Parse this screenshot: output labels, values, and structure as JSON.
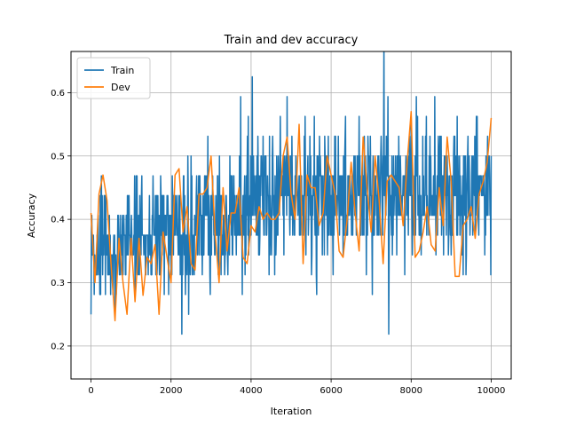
{
  "chart_data": {
    "type": "line",
    "title": "Train and dev accuracy",
    "xlabel": "Iteration",
    "ylabel": "Accuracy",
    "xlim": [
      -500,
      10500
    ],
    "ylim": [
      0.148,
      0.665
    ],
    "xticks": [
      0,
      2000,
      4000,
      6000,
      8000,
      10000
    ],
    "yticks": [
      0.2,
      0.3,
      0.4,
      0.5,
      0.6
    ],
    "grid": true,
    "legend": "top-left",
    "series": [
      {
        "name": "Train",
        "color": "#1f77b4",
        "noisy": true,
        "seed": 7,
        "x_start": 0,
        "x_step": 10,
        "count": 1001,
        "mean_knots": [
          [
            0,
            0.36
          ],
          [
            1000,
            0.37
          ],
          [
            2000,
            0.38
          ],
          [
            3000,
            0.4
          ],
          [
            4000,
            0.42
          ],
          [
            5000,
            0.44
          ],
          [
            6000,
            0.44
          ],
          [
            7000,
            0.44
          ],
          [
            8000,
            0.44
          ],
          [
            9000,
            0.44
          ],
          [
            10000,
            0.45
          ]
        ],
        "spread_knots": [
          [
            0,
            0.065
          ],
          [
            2000,
            0.075
          ],
          [
            4000,
            0.085
          ],
          [
            6000,
            0.085
          ],
          [
            8000,
            0.085
          ],
          [
            10000,
            0.085
          ]
        ]
      },
      {
        "name": "Dev",
        "color": "#ff7f0e",
        "x_start": 0,
        "x_step": 100,
        "values": [
          0.41,
          0.3,
          0.44,
          0.47,
          0.43,
          0.33,
          0.24,
          0.37,
          0.3,
          0.25,
          0.37,
          0.27,
          0.37,
          0.28,
          0.34,
          0.33,
          0.36,
          0.25,
          0.38,
          0.34,
          0.3,
          0.47,
          0.48,
          0.38,
          0.42,
          0.33,
          0.32,
          0.44,
          0.44,
          0.45,
          0.5,
          0.38,
          0.3,
          0.45,
          0.35,
          0.41,
          0.41,
          0.45,
          0.34,
          0.33,
          0.39,
          0.38,
          0.42,
          0.4,
          0.41,
          0.4,
          0.4,
          0.41,
          0.5,
          0.53,
          0.44,
          0.4,
          0.55,
          0.33,
          0.47,
          0.45,
          0.45,
          0.39,
          0.41,
          0.5,
          0.47,
          0.44,
          0.35,
          0.34,
          0.4,
          0.49,
          0.41,
          0.35,
          0.53,
          0.45,
          0.38,
          0.5,
          0.43,
          0.33,
          0.46,
          0.47,
          0.46,
          0.45,
          0.39,
          0.49,
          0.57,
          0.34,
          0.35,
          0.38,
          0.42,
          0.36,
          0.35,
          0.45,
          0.39,
          0.53,
          0.46,
          0.31,
          0.31,
          0.39,
          0.4,
          0.42,
          0.37,
          0.44,
          0.46,
          0.49,
          0.56
        ]
      }
    ]
  }
}
